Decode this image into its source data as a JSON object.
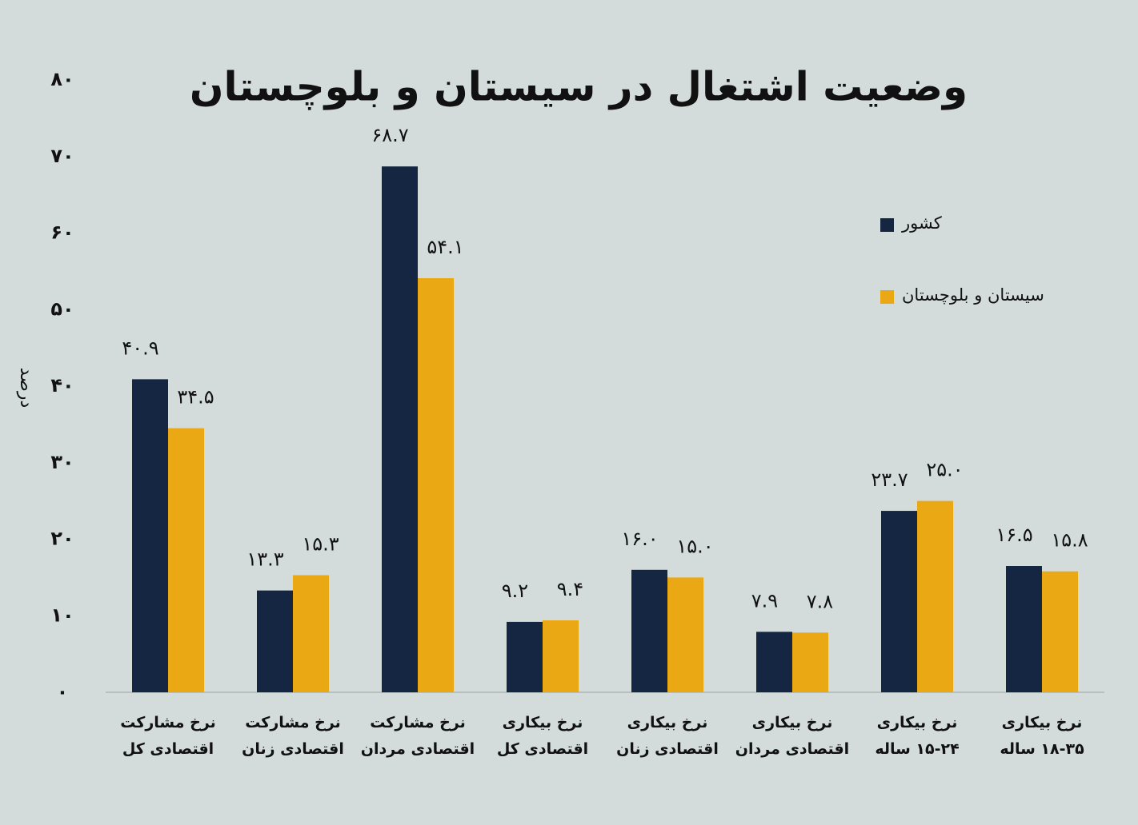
{
  "chart_data": {
    "type": "bar",
    "title": "وضعیت اشتغال در سیستان و بلوچستان",
    "y_label": "درصد",
    "categories": [
      "نرخ مشارکت\nاقتصادی کل",
      "نرخ مشارکت\nاقتصادی زنان",
      "نرخ مشارکت\nاقتصادی مردان",
      "نرخ بیکاری\nاقتصادی کل",
      "نرخ بیکاری\nاقتصادی زنان",
      "نرخ بیکاری\nاقتصادی مردان",
      "نرخ بیکاری\n۱۵-۲۴ ساله",
      "نرخ بیکاری\n۱۸-۳۵ ساله"
    ],
    "series": [
      {
        "name": "کشور",
        "color": "#142641",
        "values": [
          40.9,
          13.3,
          68.7,
          9.2,
          16.0,
          7.9,
          23.7,
          16.5
        ],
        "value_labels": [
          "۴۰.۹",
          "۱۳.۳",
          "۶۸.۷",
          "۹.۲",
          "۱۶.۰",
          "۷.۹",
          "۲۳.۷",
          "۱۶.۵"
        ]
      },
      {
        "name": "سیستان و بلوچستان",
        "color": "#eaa814",
        "values": [
          34.5,
          15.3,
          54.1,
          9.4,
          15.0,
          7.8,
          25.0,
          15.8
        ],
        "value_labels": [
          "۳۴.۵",
          "۱۵.۳",
          "۵۴.۱",
          "۹.۴",
          "۱۵.۰",
          "۷.۸",
          "۲۵.۰",
          "۱۵.۸"
        ]
      }
    ],
    "ylim": [
      0,
      80
    ],
    "yticks": [
      {
        "value": 0,
        "label": "۰"
      },
      {
        "value": 10,
        "label": "۱۰"
      },
      {
        "value": 20,
        "label": "۲۰"
      },
      {
        "value": 30,
        "label": "۳۰"
      },
      {
        "value": 40,
        "label": "۴۰"
      },
      {
        "value": 50,
        "label": "۵۰"
      },
      {
        "value": 60,
        "label": "۶۰"
      },
      {
        "value": 70,
        "label": "۷۰"
      },
      {
        "value": 80,
        "label": "۸۰"
      }
    ],
    "grid": false,
    "legend": "top-right"
  }
}
